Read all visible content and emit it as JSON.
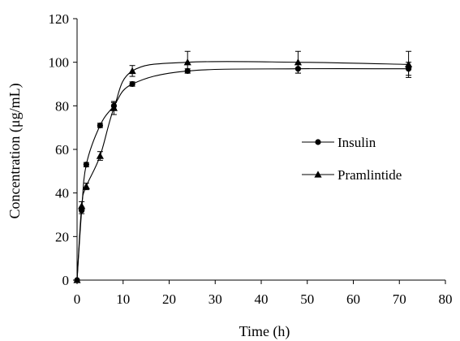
{
  "chart_data": {
    "type": "line",
    "title": "",
    "xlabel": "Time (h)",
    "ylabel": "Concentration (μg/mL)",
    "xlim": [
      0,
      80
    ],
    "ylim": [
      0,
      120
    ],
    "xticks": [
      0,
      10,
      20,
      30,
      40,
      50,
      60,
      70,
      80
    ],
    "yticks": [
      0,
      20,
      40,
      60,
      80,
      100,
      120
    ],
    "grid": false,
    "legend_position": "right",
    "series": [
      {
        "name": "Insulin",
        "marker": "circle",
        "color": "#000000",
        "x": [
          0,
          1,
          2,
          5,
          8,
          12,
          24,
          48,
          72
        ],
        "y": [
          0,
          32,
          53,
          71,
          80,
          90,
          96,
          97,
          97
        ],
        "error": [
          0,
          1.5,
          1,
          1,
          1.5,
          1,
          1,
          2,
          3
        ]
      },
      {
        "name": "Pramlintide",
        "marker": "triangle",
        "color": "#000000",
        "x": [
          0,
          1,
          2,
          5,
          8,
          12,
          24,
          48,
          72
        ],
        "y": [
          0,
          34,
          43,
          57,
          79,
          96,
          100,
          100,
          99
        ],
        "error": [
          0,
          2,
          1.5,
          2,
          3,
          2.5,
          5,
          5,
          6
        ]
      }
    ]
  }
}
